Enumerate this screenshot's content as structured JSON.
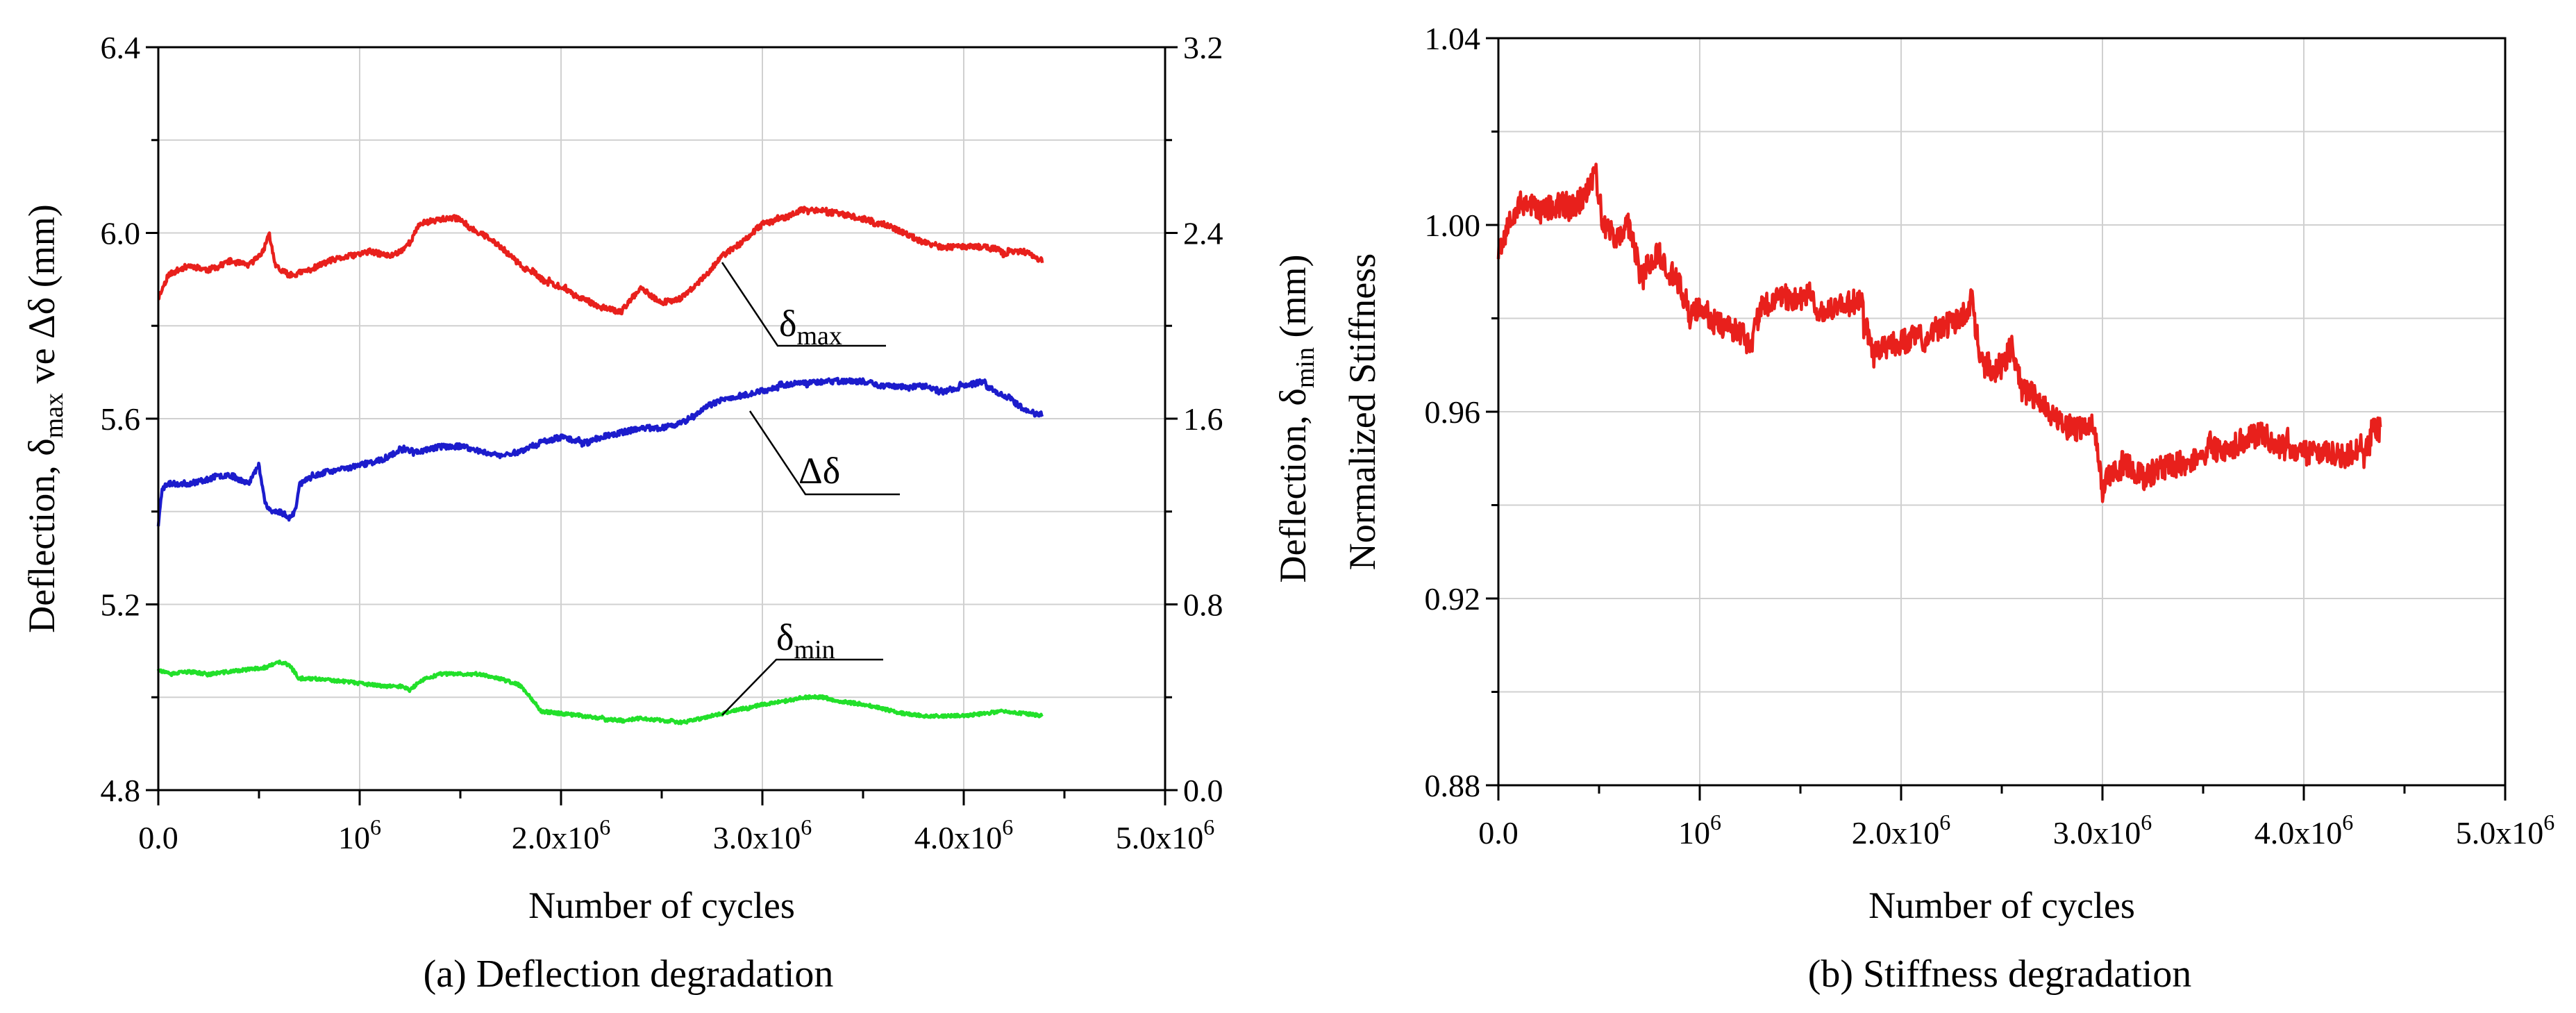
{
  "chart_data": [
    {
      "type": "line",
      "caption": "(a) Deflection degradation",
      "xlabel": "Number of cycles",
      "ylabel_left": {
        "pre": "Deflection, δ",
        "sub": "max",
        "post": " ve Δδ (mm)"
      },
      "ylabel_right": {
        "pre": "Deflection, δ",
        "sub": "min",
        "post": " (mm)"
      },
      "xlim": [
        0,
        5000000
      ],
      "ylim_left": [
        4.8,
        6.4
      ],
      "ylim_right": [
        0.0,
        3.2
      ],
      "x_ticks": [
        {
          "value": 0,
          "label": "0.0",
          "sup": ""
        },
        {
          "value": 1000000,
          "label": "10",
          "sup": "6"
        },
        {
          "value": 2000000,
          "label": "2.0x10",
          "sup": "6"
        },
        {
          "value": 3000000,
          "label": "3.0x10",
          "sup": "6"
        },
        {
          "value": 4000000,
          "label": "4.0x10",
          "sup": "6"
        },
        {
          "value": 5000000,
          "label": "5.0x10",
          "sup": "6"
        }
      ],
      "y_ticks_left": [
        {
          "value": 4.8,
          "label": "4.8"
        },
        {
          "value": 5.2,
          "label": "5.2"
        },
        {
          "value": 5.6,
          "label": "5.6"
        },
        {
          "value": 6.0,
          "label": "6.0"
        },
        {
          "value": 6.4,
          "label": "6.4"
        }
      ],
      "y_ticks_right": [
        {
          "value": 0.0,
          "label": "0.0"
        },
        {
          "value": 0.8,
          "label": "0.8"
        },
        {
          "value": 1.6,
          "label": "1.6"
        },
        {
          "value": 2.4,
          "label": "2.4"
        },
        {
          "value": 3.2,
          "label": "3.2"
        }
      ],
      "grid": true,
      "series": [
        {
          "name": "δmax",
          "axis": "left",
          "color": "#e8201c",
          "noise": 0.006,
          "seed": 11,
          "x": [
            0,
            50000,
            150000,
            250000,
            350000,
            450000,
            520000,
            550000,
            580000,
            650000,
            750000,
            850000,
            950000,
            1050000,
            1150000,
            1200000,
            1250000,
            1300000,
            1400000,
            1500000,
            1550000,
            1600000,
            1700000,
            1800000,
            1900000,
            2000000,
            2100000,
            2200000,
            2300000,
            2350000,
            2400000,
            2500000,
            2600000,
            2700000,
            2800000,
            2900000,
            3000000,
            3100000,
            3200000,
            3300000,
            3400000,
            3500000,
            3600000,
            3700000,
            3800000,
            3900000,
            4000000,
            4100000,
            4200000,
            4300000,
            4390000
          ],
          "y": [
            5.86,
            5.91,
            5.93,
            5.92,
            5.94,
            5.93,
            5.96,
            6.0,
            5.93,
            5.91,
            5.92,
            5.94,
            5.95,
            5.96,
            5.95,
            5.96,
            5.98,
            6.02,
            6.03,
            6.03,
            6.01,
            6.0,
            5.97,
            5.93,
            5.9,
            5.88,
            5.86,
            5.84,
            5.83,
            5.86,
            5.88,
            5.85,
            5.86,
            5.9,
            5.95,
            5.98,
            6.02,
            6.03,
            6.05,
            6.05,
            6.04,
            6.03,
            6.02,
            6.0,
            5.98,
            5.97,
            5.97,
            5.97,
            5.96,
            5.96,
            5.94
          ]
        },
        {
          "name": "Δδ",
          "axis": "left",
          "color": "#1c1ccc",
          "noise": 0.006,
          "seed": 23,
          "x": [
            0,
            20000,
            50000,
            150000,
            250000,
            350000,
            450000,
            500000,
            530000,
            560000,
            600000,
            650000,
            680000,
            700000,
            800000,
            900000,
            1000000,
            1100000,
            1200000,
            1300000,
            1400000,
            1500000,
            1600000,
            1700000,
            1800000,
            1900000,
            2000000,
            2100000,
            2200000,
            2300000,
            2400000,
            2500000,
            2600000,
            2700000,
            2800000,
            2900000,
            3000000,
            3100000,
            3200000,
            3300000,
            3400000,
            3500000,
            3600000,
            3700000,
            3800000,
            3900000,
            4000000,
            4100000,
            4150000,
            4200000,
            4300000,
            4390000
          ],
          "y": [
            5.37,
            5.45,
            5.46,
            5.46,
            5.47,
            5.48,
            5.46,
            5.5,
            5.42,
            5.4,
            5.4,
            5.39,
            5.4,
            5.46,
            5.48,
            5.49,
            5.5,
            5.51,
            5.53,
            5.53,
            5.54,
            5.54,
            5.53,
            5.52,
            5.53,
            5.55,
            5.56,
            5.55,
            5.56,
            5.57,
            5.58,
            5.58,
            5.59,
            5.62,
            5.64,
            5.65,
            5.66,
            5.67,
            5.68,
            5.68,
            5.68,
            5.68,
            5.67,
            5.67,
            5.67,
            5.66,
            5.67,
            5.68,
            5.66,
            5.65,
            5.62,
            5.61
          ]
        },
        {
          "name": "δmin",
          "axis": "right",
          "color": "#22e02a",
          "noise": 0.007,
          "seed": 37,
          "x": [
            0,
            50000,
            150000,
            250000,
            350000,
            450000,
            550000,
            600000,
            650000,
            700000,
            800000,
            900000,
            1000000,
            1100000,
            1200000,
            1250000,
            1300000,
            1400000,
            1500000,
            1600000,
            1700000,
            1800000,
            1850000,
            1900000,
            2000000,
            2100000,
            2200000,
            2300000,
            2400000,
            2500000,
            2600000,
            2700000,
            2800000,
            2900000,
            3000000,
            3100000,
            3200000,
            3300000,
            3400000,
            3500000,
            3600000,
            3700000,
            3800000,
            3900000,
            4000000,
            4100000,
            4200000,
            4300000,
            4390000
          ],
          "y": [
            0.52,
            0.5,
            0.51,
            0.5,
            0.51,
            0.52,
            0.53,
            0.55,
            0.54,
            0.48,
            0.48,
            0.47,
            0.46,
            0.45,
            0.45,
            0.43,
            0.47,
            0.5,
            0.5,
            0.5,
            0.48,
            0.45,
            0.4,
            0.34,
            0.33,
            0.32,
            0.31,
            0.3,
            0.31,
            0.3,
            0.29,
            0.31,
            0.33,
            0.35,
            0.37,
            0.38,
            0.4,
            0.4,
            0.38,
            0.37,
            0.35,
            0.33,
            0.32,
            0.32,
            0.32,
            0.33,
            0.34,
            0.33,
            0.32
          ]
        }
      ],
      "annotations": [
        {
          "pre": "δ",
          "sub": "max"
        },
        {
          "pre": "Δδ",
          "sub": ""
        },
        {
          "pre": "δ",
          "sub": "min"
        }
      ]
    },
    {
      "type": "line",
      "caption": "(b) Stiffness degradation",
      "xlabel": "Number of cycles",
      "ylabel": "Normalized Stiffness",
      "xlim": [
        0,
        5000000
      ],
      "ylim": [
        0.88,
        1.04
      ],
      "x_ticks": [
        {
          "value": 0,
          "label": "0.0",
          "sup": ""
        },
        {
          "value": 1000000,
          "label": "10",
          "sup": "6"
        },
        {
          "value": 2000000,
          "label": "2.0x10",
          "sup": "6"
        },
        {
          "value": 3000000,
          "label": "3.0x10",
          "sup": "6"
        },
        {
          "value": 4000000,
          "label": "4.0x10",
          "sup": "6"
        },
        {
          "value": 5000000,
          "label": "5.0x10",
          "sup": "6"
        }
      ],
      "y_ticks": [
        {
          "value": 0.88,
          "label": "0.88"
        },
        {
          "value": 0.92,
          "label": "0.92"
        },
        {
          "value": 0.96,
          "label": "0.96"
        },
        {
          "value": 1.0,
          "label": "1.00"
        },
        {
          "value": 1.04,
          "label": "1.04"
        }
      ],
      "grid": true,
      "series": [
        {
          "name": "Normalized Stiffness",
          "color": "#e8201c",
          "noise": 0.0028,
          "seed": 53,
          "x": [
            0,
            50000,
            100000,
            150000,
            200000,
            300000,
            400000,
            450000,
            480000,
            520000,
            600000,
            650000,
            700000,
            800000,
            850000,
            900000,
            950000,
            1000000,
            1100000,
            1200000,
            1250000,
            1300000,
            1400000,
            1500000,
            1550000,
            1600000,
            1700000,
            1800000,
            1850000,
            1900000,
            2000000,
            2100000,
            2200000,
            2300000,
            2350000,
            2400000,
            2500000,
            2550000,
            2600000,
            2700000,
            2800000,
            2900000,
            2950000,
            3000000,
            3050000,
            3100000,
            3200000,
            3300000,
            3400000,
            3500000,
            3600000,
            3700000,
            3800000,
            3900000,
            4000000,
            4100000,
            4200000,
            4300000,
            4380000
          ],
          "y": [
            0.995,
            1.0,
            1.004,
            1.005,
            1.003,
            1.004,
            1.005,
            1.008,
            1.012,
            1.0,
            0.997,
            1.0,
            0.99,
            0.994,
            0.99,
            0.987,
            0.98,
            0.982,
            0.979,
            0.977,
            0.974,
            0.982,
            0.984,
            0.984,
            0.986,
            0.98,
            0.983,
            0.984,
            0.975,
            0.973,
            0.975,
            0.976,
            0.978,
            0.98,
            0.984,
            0.97,
            0.97,
            0.974,
            0.965,
            0.962,
            0.957,
            0.956,
            0.957,
            0.944,
            0.948,
            0.95,
            0.946,
            0.948,
            0.949,
            0.951,
            0.952,
            0.954,
            0.955,
            0.952,
            0.951,
            0.952,
            0.95,
            0.953,
            0.956
          ]
        }
      ]
    }
  ]
}
